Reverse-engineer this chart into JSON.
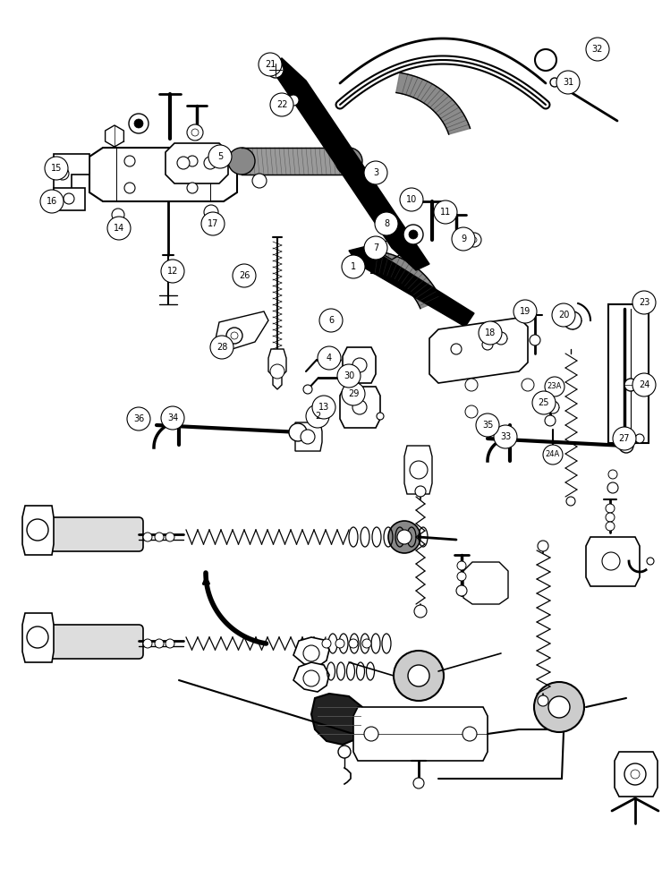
{
  "bg_color": "#ffffff",
  "fig_width": 7.4,
  "fig_height": 10.0,
  "dpi": 100
}
